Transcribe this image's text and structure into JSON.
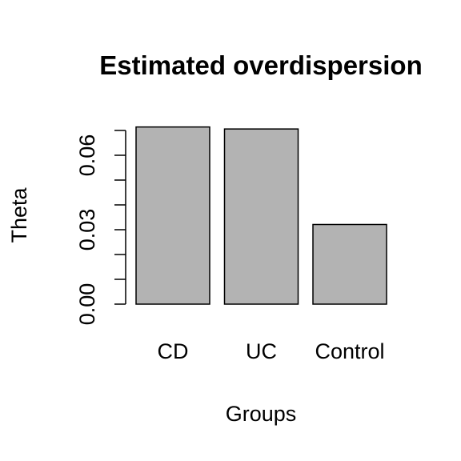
{
  "chart_data": {
    "type": "bar",
    "title": "Estimated overdispersion",
    "xlabel": "Groups",
    "ylabel": "Theta",
    "categories": [
      "CD",
      "UC",
      "Control"
    ],
    "values": [
      0.0714,
      0.0706,
      0.0321
    ],
    "ylim": [
      0,
      0.07
    ],
    "yticks": [
      0.0,
      0.01,
      0.02,
      0.03,
      0.04,
      0.05,
      0.06,
      0.07
    ],
    "ytick_labels": [
      {
        "value": 0.0,
        "label": "0.00"
      },
      {
        "value": 0.03,
        "label": "0.03"
      },
      {
        "value": 0.06,
        "label": "0.06"
      }
    ],
    "bar_color": "#b3b3b3",
    "edge_color": "#000000",
    "grid": false,
    "legend": "none"
  }
}
